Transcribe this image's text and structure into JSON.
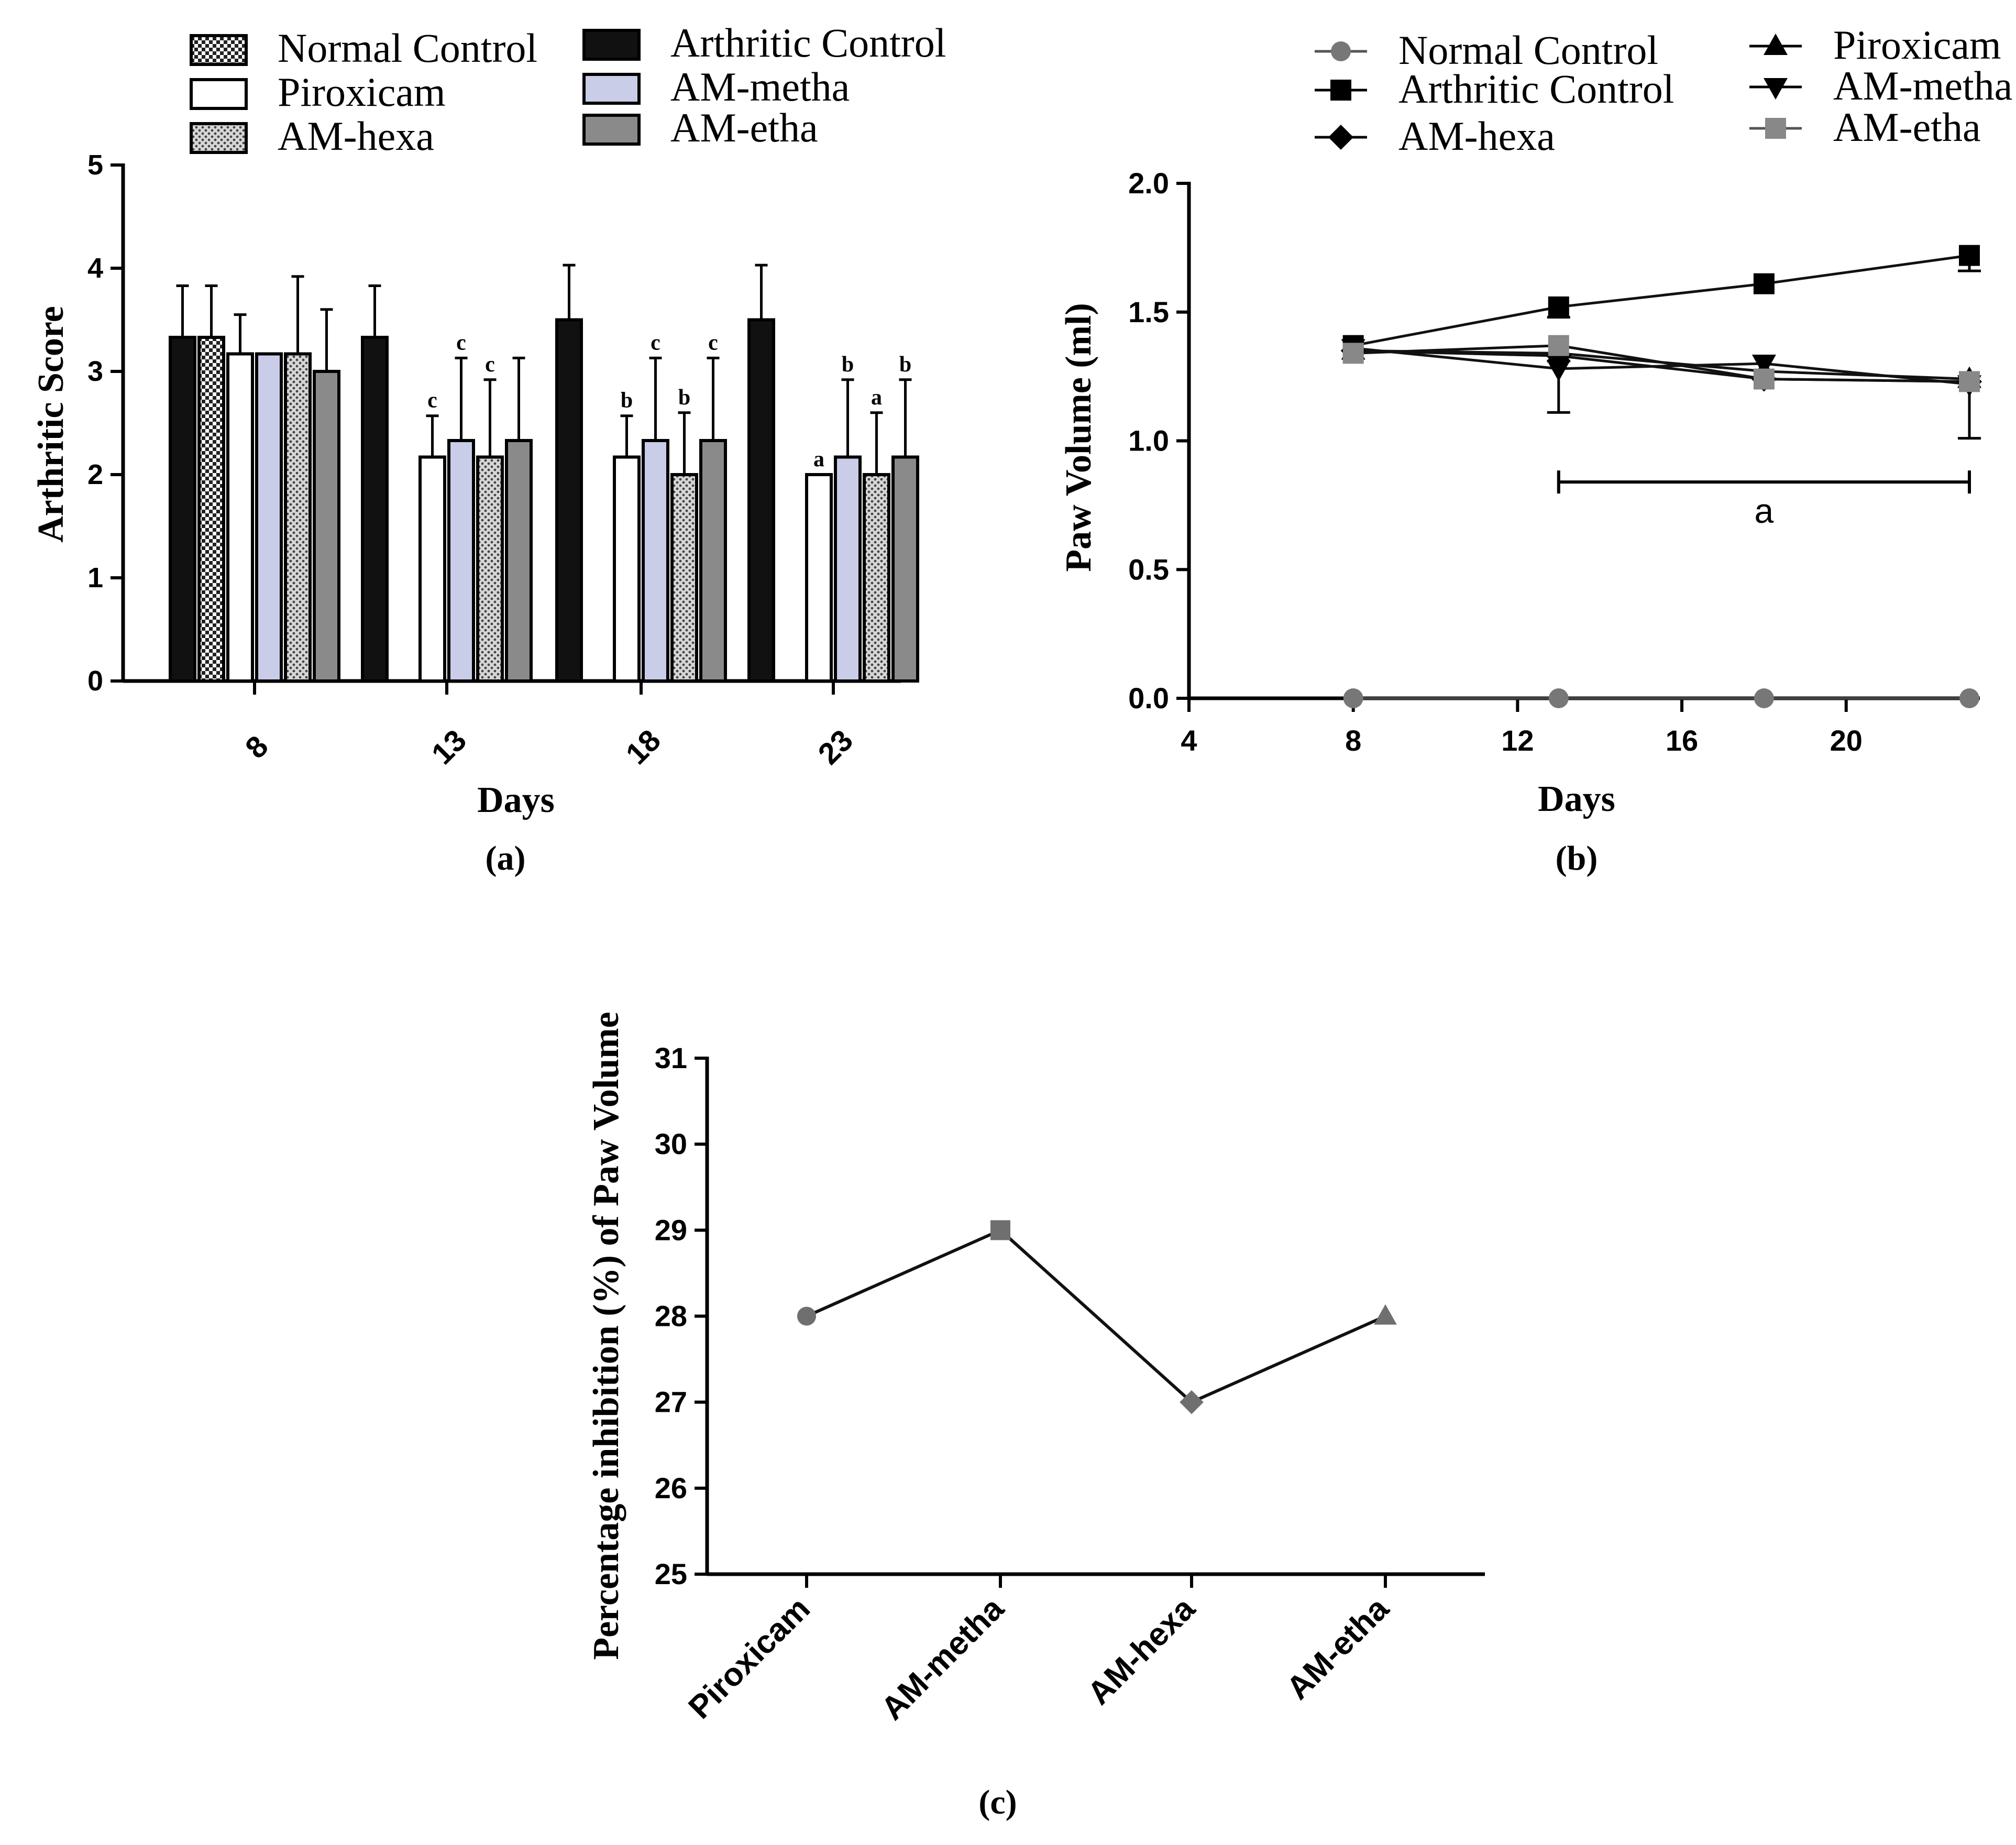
{
  "chart_data": [
    {
      "id": "a",
      "type": "bar",
      "panel_label": "(a)",
      "xlabel": "Days",
      "ylabel": "Arthritic Score",
      "ylim": [
        0,
        5
      ],
      "yticks": [
        "0",
        "1",
        "2",
        "3",
        "4",
        "5"
      ],
      "categories": [
        "8",
        "13",
        "18",
        "23"
      ],
      "legend_position": "top",
      "series": [
        {
          "name": "Arthritic Control",
          "pattern": "black",
          "values": [
            3.33,
            3.33,
            3.5,
            3.5
          ],
          "errors": [
            0.5,
            0.5,
            0.53,
            0.53
          ],
          "annotations": [
            "",
            "",
            "",
            ""
          ]
        },
        {
          "name": "Normal Control",
          "pattern": "checker",
          "values": [
            3.33,
            0,
            0,
            0
          ],
          "errors": [
            0.5,
            0,
            0,
            0
          ],
          "annotations": [
            "",
            "",
            "",
            ""
          ]
        },
        {
          "name": "Piroxicam",
          "pattern": "white",
          "values": [
            3.17,
            2.17,
            2.17,
            2.0
          ],
          "errors": [
            0.38,
            0.4,
            0.4,
            0.0
          ],
          "annotations": [
            "",
            "c",
            "b",
            "a"
          ]
        },
        {
          "name": "AM-metha",
          "pattern": "lavender",
          "values": [
            3.17,
            2.33,
            2.33,
            2.17
          ],
          "errors": [
            0.0,
            0.8,
            0.8,
            0.75
          ],
          "annotations": [
            "",
            "c",
            "c",
            "b"
          ]
        },
        {
          "name": "AM-hexa",
          "pattern": "dotted",
          "values": [
            3.17,
            2.17,
            2.0,
            2.0
          ],
          "errors": [
            0.75,
            0.75,
            0.6,
            0.6
          ],
          "annotations": [
            "",
            "c",
            "b",
            "a"
          ]
        },
        {
          "name": "AM-etha",
          "pattern": "gray",
          "values": [
            3.0,
            2.33,
            2.33,
            2.17
          ],
          "errors": [
            0.6,
            0.8,
            0.8,
            0.75
          ],
          "annotations": [
            "",
            "",
            "c",
            "b"
          ]
        }
      ]
    },
    {
      "id": "b",
      "type": "line",
      "panel_label": "(b)",
      "xlabel": "Days",
      "ylabel": "Paw Volume (ml)",
      "xlim": [
        4,
        23
      ],
      "ylim": [
        0,
        2
      ],
      "xticks": [
        "4",
        "8",
        "12",
        "16",
        "20"
      ],
      "yticks": [
        "0.0",
        "0.5",
        "1.0",
        "1.5",
        "2.0"
      ],
      "x": [
        8,
        13,
        18,
        23
      ],
      "legend_position": "top",
      "significance": {
        "label": "a",
        "x_from": 13,
        "x_to": 23,
        "y": 0.84
      },
      "series": [
        {
          "name": "Normal Control",
          "marker": "circle",
          "color": "#777777",
          "values": [
            0,
            0,
            0,
            0
          ]
        },
        {
          "name": "Arthritic Control",
          "marker": "square",
          "color": "#000000",
          "values": [
            1.37,
            1.52,
            1.61,
            1.72
          ],
          "errors": [
            0,
            0.04,
            0,
            0.06
          ]
        },
        {
          "name": "AM-hexa",
          "marker": "diamond",
          "color": "#000000",
          "values": [
            1.35,
            1.33,
            1.24,
            1.23
          ]
        },
        {
          "name": "Piroxicam",
          "marker": "triangle-up",
          "color": "#000000",
          "values": [
            1.35,
            1.34,
            1.27,
            1.24
          ]
        },
        {
          "name": "AM-metha",
          "marker": "triangle-down",
          "color": "#000000",
          "values": [
            1.36,
            1.28,
            1.3,
            1.22
          ],
          "errors": [
            0,
            0.17,
            0,
            0.21
          ]
        },
        {
          "name": "AM-etha",
          "marker": "square-gray",
          "color": "#888888",
          "values": [
            1.34,
            1.37,
            1.24,
            1.23
          ]
        }
      ]
    },
    {
      "id": "c",
      "type": "line",
      "panel_label": "(c)",
      "ylabel": "Percentage inhibition (%) of Paw Volume",
      "ylim": [
        25,
        31
      ],
      "yticks": [
        "25",
        "26",
        "27",
        "28",
        "29",
        "30",
        "31"
      ],
      "categories": [
        "Piroxicam",
        "AM-metha",
        "AM-hexa",
        "AM-etha"
      ],
      "markers": [
        "circle",
        "square",
        "diamond",
        "triangle-up"
      ],
      "series": [
        {
          "name": "Percentage inhibition",
          "values": [
            28,
            29,
            27,
            28
          ]
        }
      ]
    }
  ]
}
